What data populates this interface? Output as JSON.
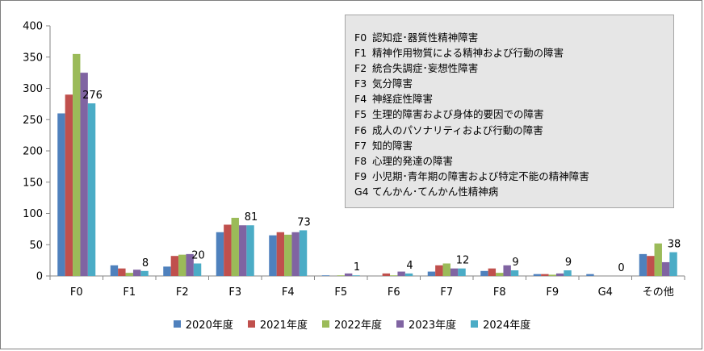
{
  "chart_data": {
    "type": "bar",
    "categories": [
      "F0",
      "F1",
      "F2",
      "F3",
      "F4",
      "F5",
      "F6",
      "F7",
      "F8",
      "F9",
      "G4",
      "その他"
    ],
    "ylim": [
      0,
      400
    ],
    "yticks": [
      0,
      50,
      100,
      150,
      200,
      250,
      300,
      350,
      400
    ],
    "grid": false,
    "legend_position": "bottom",
    "series": [
      {
        "name": "2020年度",
        "color": "#4f81bd",
        "values": [
          260,
          17,
          15,
          70,
          65,
          1,
          0,
          7,
          8,
          3,
          3,
          35
        ]
      },
      {
        "name": "2021年度",
        "color": "#c0504d",
        "values": [
          290,
          12,
          32,
          82,
          70,
          0,
          4,
          17,
          12,
          3,
          0,
          32
        ]
      },
      {
        "name": "2022年度",
        "color": "#9bbb59",
        "values": [
          355,
          5,
          34,
          93,
          66,
          1,
          1,
          20,
          5,
          2,
          0,
          52
        ]
      },
      {
        "name": "2023年度",
        "color": "#8064a2",
        "values": [
          325,
          10,
          35,
          81,
          70,
          4,
          7,
          12,
          17,
          4,
          0,
          22
        ]
      },
      {
        "name": "2024年度",
        "color": "#4bacc6",
        "values": [
          276,
          8,
          20,
          81,
          73,
          1,
          4,
          12,
          9,
          9,
          0,
          38
        ]
      }
    ],
    "data_labels_series": 4,
    "annotations": [
      {
        "code": "F0",
        "text": "認知症･器質性精神障害"
      },
      {
        "code": "F1",
        "text": "精神作用物質による精神および行動の障害"
      },
      {
        "code": "F2",
        "text": "統合失調症･妄想性障害"
      },
      {
        "code": "F3",
        "text": "気分障害"
      },
      {
        "code": "F4",
        "text": "神経症性障害"
      },
      {
        "code": "F5",
        "text": "生理的障害および身体的要因での障害"
      },
      {
        "code": "F6",
        "text": "成人のパソナリティおよび行動の障害"
      },
      {
        "code": "F7",
        "text": "知的障害"
      },
      {
        "code": "F8",
        "text": "心理的発達の障害"
      },
      {
        "code": "F9",
        "text": "小児期･青年期の障害および特定不能の精神障害"
      },
      {
        "code": "G4",
        "text": "てんかん･てんかん性精神病"
      }
    ]
  }
}
